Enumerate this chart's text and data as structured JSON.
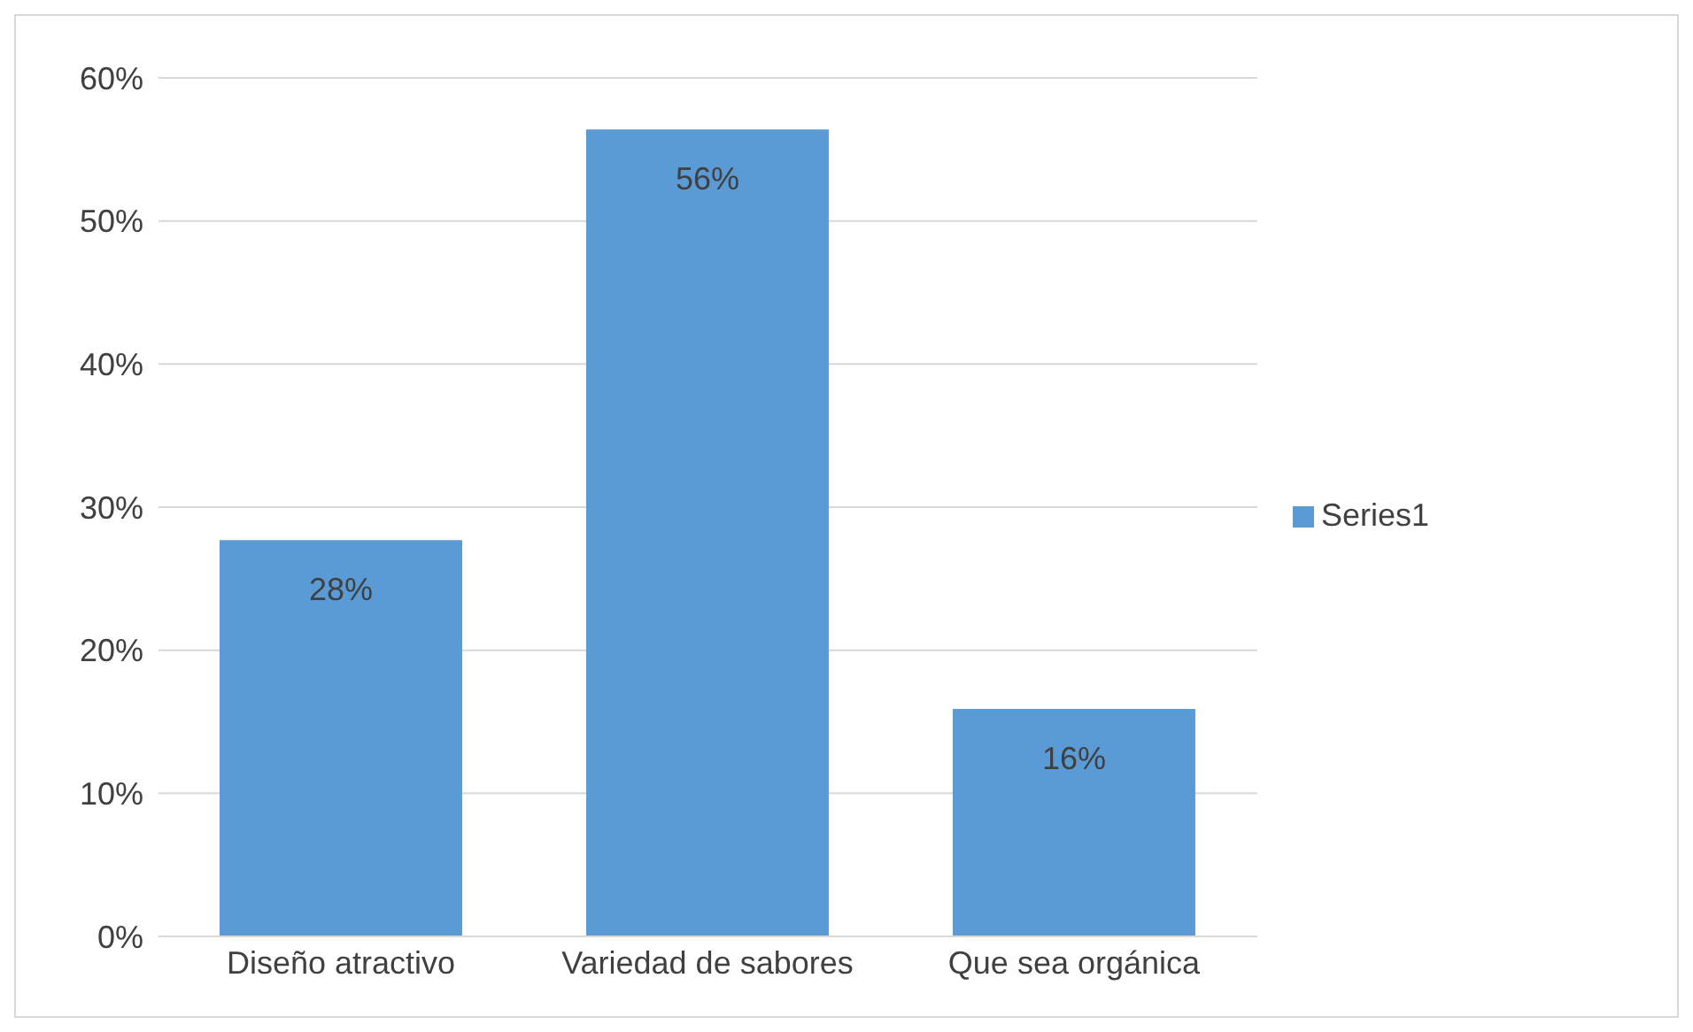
{
  "chart_data": {
    "type": "bar",
    "categories": [
      "Diseño atractivo",
      "Variedad de sabores",
      "Que sea orgánica"
    ],
    "series": [
      {
        "name": "Series1",
        "color": "#5b9bd5",
        "values": [
          27.7,
          56.4,
          15.9
        ],
        "value_labels": [
          "28%",
          "56%",
          "16%"
        ]
      }
    ],
    "ylim": [
      0,
      60
    ],
    "yticks": [
      {
        "value": 0,
        "label": "0%"
      },
      {
        "value": 10,
        "label": "10%"
      },
      {
        "value": 20,
        "label": "20%"
      },
      {
        "value": 30,
        "label": "30%"
      },
      {
        "value": 40,
        "label": "40%"
      },
      {
        "value": 50,
        "label": "50%"
      },
      {
        "value": 60,
        "label": "60%"
      }
    ],
    "grid": "y",
    "legend": "right"
  }
}
